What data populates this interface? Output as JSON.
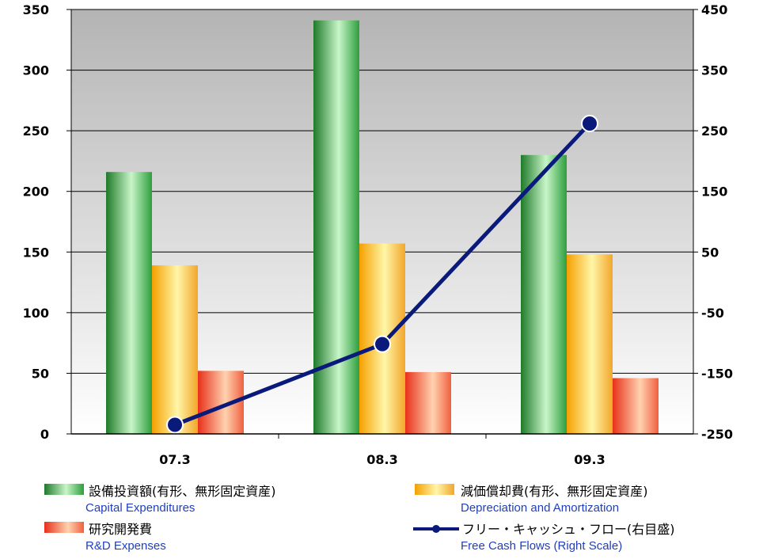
{
  "chart_data": {
    "type": "bar",
    "categories": [
      "07.3",
      "08.3",
      "09.3"
    ],
    "series": [
      {
        "name": "設備投資額(有形、無形固定資産) Capital Expenditures",
        "type": "bar",
        "axis": "left",
        "values": [
          216,
          341,
          230
        ],
        "color": "#2e9e3e"
      },
      {
        "name": "減価償却費(有形、無形固定資産) Depreciation and Amortization",
        "type": "bar",
        "axis": "left",
        "values": [
          139,
          157,
          148
        ],
        "color": "#f5a623"
      },
      {
        "name": "研究開発費 R&D Expenses",
        "type": "bar",
        "axis": "left",
        "values": [
          52,
          51,
          46
        ],
        "color": "#f04a2a"
      },
      {
        "name": "フリー・キャッシュ・フロー(右目盛) Free Cash Flows (Right Scale)",
        "type": "line",
        "axis": "right",
        "values": [
          -235,
          -102,
          262
        ],
        "color": "#0a1a7a"
      }
    ],
    "ylim": [
      0,
      350
    ],
    "yticks": [
      "0",
      "50",
      "100",
      "150",
      "200",
      "250",
      "300",
      "350"
    ],
    "y2lim": [
      -250,
      450
    ],
    "y2ticks": [
      "-250",
      "-150",
      "-50",
      "50",
      "150",
      "250",
      "350",
      "450"
    ],
    "grid": true
  },
  "legend": {
    "capex_jp": "設備投資額(有形、無形固定資産)",
    "capex_en": "Capital Expenditures",
    "dep_jp": "減価償却費(有形、無形固定資産)",
    "dep_en": "Depreciation and Amortization",
    "rd_jp": "研究開発費",
    "rd_en": "R&D Expenses",
    "fcf_jp": "フリー・キャッシュ・フロー(右目盛)",
    "fcf_en": "Free Cash Flows (Right Scale)"
  }
}
